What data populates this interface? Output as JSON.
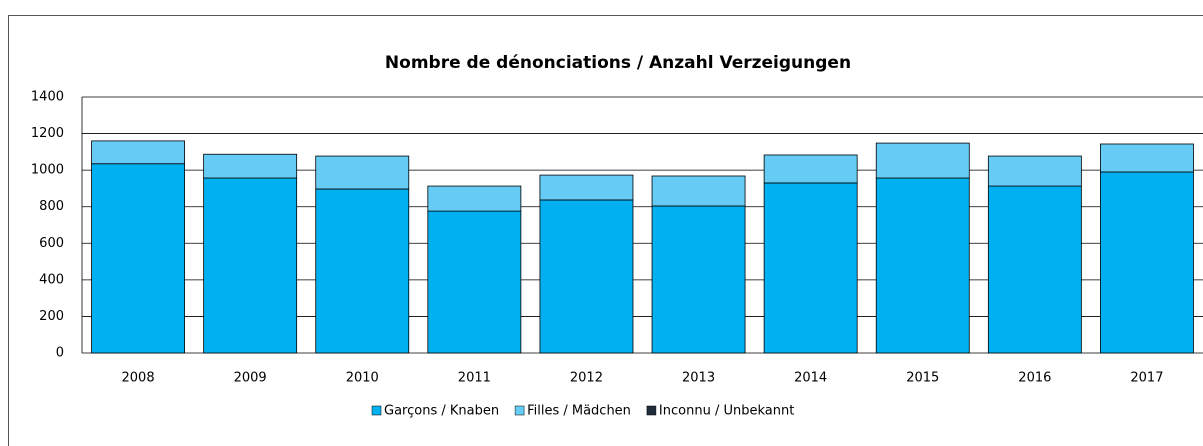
{
  "chart_data": {
    "type": "stacked_bar",
    "title": "Nombre de dénonciations / Anzahl Verzeigungen",
    "categories": [
      "2008",
      "2009",
      "2010",
      "2011",
      "2012",
      "2013",
      "2014",
      "2015",
      "2016",
      "2017"
    ],
    "series": [
      {
        "name": "Garçons / Knaben",
        "color": "#00b0f0",
        "values": [
          1035,
          957,
          897,
          776,
          837,
          804,
          930,
          957,
          913,
          990
        ]
      },
      {
        "name": "Filles / Mädchen",
        "color": "#66ccf5",
        "values": [
          125,
          130,
          180,
          137,
          136,
          164,
          153,
          191,
          164,
          153
        ]
      },
      {
        "name": "Inconnu / Unbekannt",
        "color": "#1f2d3d",
        "values": [
          0,
          0,
          0,
          0,
          0,
          0,
          0,
          0,
          0,
          0
        ]
      }
    ],
    "ylim": [
      0,
      1400
    ],
    "yticks": [
      0,
      200,
      400,
      600,
      800,
      1000,
      1200,
      1400
    ],
    "grid": true,
    "legend": "bottom"
  }
}
